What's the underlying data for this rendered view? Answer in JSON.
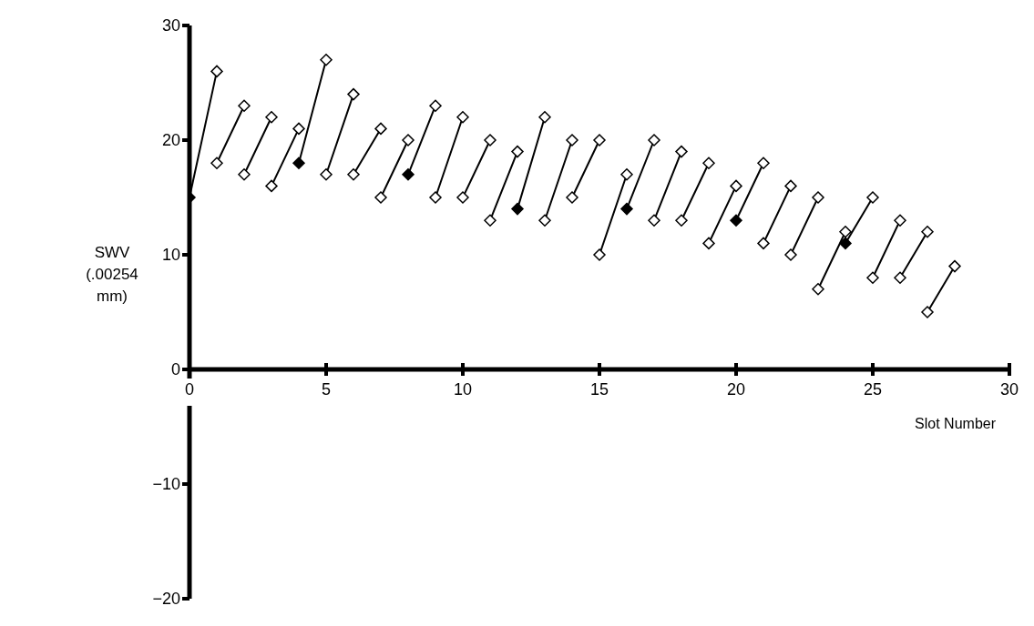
{
  "chart_data": {
    "type": "line",
    "xlabel": "Slot Number",
    "ylabel": "SWV (.00254 mm)",
    "xlim": [
      0,
      30
    ],
    "xticks": [
      0,
      5,
      10,
      15,
      20,
      25,
      30
    ],
    "ylim": [
      -20,
      30
    ],
    "yticks": [
      -20,
      -10,
      0,
      10,
      20,
      30
    ],
    "grid": false,
    "series": [
      {
        "x": [
          0,
          1
        ],
        "values": [
          15,
          26
        ],
        "color": "#000000"
      },
      {
        "x": [
          1,
          2
        ],
        "values": [
          18,
          23
        ],
        "color": "#000000"
      },
      {
        "x": [
          2,
          3
        ],
        "values": [
          17,
          22
        ],
        "color": "#000000"
      },
      {
        "x": [
          3,
          4
        ],
        "values": [
          16,
          21
        ],
        "color": "#000000"
      },
      {
        "x": [
          4,
          5
        ],
        "values": [
          18,
          27
        ],
        "color": "#000000"
      },
      {
        "x": [
          5,
          6
        ],
        "values": [
          17,
          24
        ],
        "color": "#000000"
      },
      {
        "x": [
          6,
          7
        ],
        "values": [
          17,
          21
        ],
        "color": "#000000"
      },
      {
        "x": [
          7,
          8
        ],
        "values": [
          15,
          20
        ],
        "color": "#000000"
      },
      {
        "x": [
          8,
          9
        ],
        "values": [
          17,
          23
        ],
        "color": "#000000"
      },
      {
        "x": [
          9,
          10
        ],
        "values": [
          15,
          22
        ],
        "color": "#000000"
      },
      {
        "x": [
          10,
          11
        ],
        "values": [
          15,
          20
        ],
        "color": "#000000"
      },
      {
        "x": [
          11,
          12
        ],
        "values": [
          13,
          19
        ],
        "color": "#000000"
      },
      {
        "x": [
          12,
          13
        ],
        "values": [
          14,
          22
        ],
        "color": "#000000"
      },
      {
        "x": [
          13,
          14
        ],
        "values": [
          13,
          20
        ],
        "color": "#000000"
      },
      {
        "x": [
          14,
          15
        ],
        "values": [
          15,
          20
        ],
        "color": "#000000"
      },
      {
        "x": [
          15,
          16
        ],
        "values": [
          10,
          17
        ],
        "color": "#000000"
      },
      {
        "x": [
          16,
          17
        ],
        "values": [
          14,
          20
        ],
        "color": "#000000"
      },
      {
        "x": [
          17,
          18
        ],
        "values": [
          13,
          19
        ],
        "color": "#000000"
      },
      {
        "x": [
          18,
          19
        ],
        "values": [
          13,
          18
        ],
        "color": "#000000"
      },
      {
        "x": [
          19,
          20
        ],
        "values": [
          11,
          16
        ],
        "color": "#000000"
      },
      {
        "x": [
          20,
          21
        ],
        "values": [
          13,
          18
        ],
        "color": "#000000"
      },
      {
        "x": [
          21,
          22
        ],
        "values": [
          11,
          16
        ],
        "color": "#000000"
      },
      {
        "x": [
          22,
          23
        ],
        "values": [
          10,
          15
        ],
        "color": "#000000"
      },
      {
        "x": [
          23,
          24
        ],
        "values": [
          7,
          12
        ],
        "color": "#000000"
      },
      {
        "x": [
          24,
          25
        ],
        "values": [
          11,
          15
        ],
        "color": "#000000"
      },
      {
        "x": [
          25,
          26
        ],
        "values": [
          8,
          13
        ],
        "color": "#000000"
      },
      {
        "x": [
          26,
          27
        ],
        "values": [
          8,
          12
        ],
        "color": "#000000"
      },
      {
        "x": [
          27,
          28
        ],
        "values": [
          5,
          9
        ],
        "color": "#000000"
      },
      {
        "type": "scatter",
        "marker": "diamond",
        "x": [
          1,
          2,
          3,
          4,
          5,
          6,
          7,
          8,
          9,
          10,
          11,
          12,
          13,
          14,
          15,
          16,
          17,
          18,
          19,
          20,
          21,
          22,
          23,
          24,
          25,
          26,
          27,
          28,
          1,
          2,
          3,
          5,
          6,
          7,
          9,
          10,
          11,
          13,
          14,
          15,
          17,
          18,
          19,
          21,
          22,
          23,
          25,
          26,
          27
        ],
        "values": [
          26,
          23,
          22,
          21,
          27,
          24,
          21,
          20,
          23,
          22,
          20,
          19,
          22,
          20,
          20,
          17,
          20,
          19,
          18,
          16,
          18,
          16,
          15,
          12,
          15,
          13,
          12,
          9,
          18,
          17,
          16,
          17,
          17,
          15,
          15,
          15,
          13,
          13,
          15,
          10,
          13,
          13,
          11,
          11,
          10,
          7,
          8,
          8,
          5
        ],
        "color": "#ffffff"
      },
      {
        "type": "scatter",
        "marker": "diamond",
        "x": [
          0,
          4,
          8,
          12,
          16,
          20,
          24
        ],
        "values": [
          15,
          18,
          17,
          14,
          14,
          13,
          11
        ],
        "color": "#000000"
      }
    ]
  }
}
